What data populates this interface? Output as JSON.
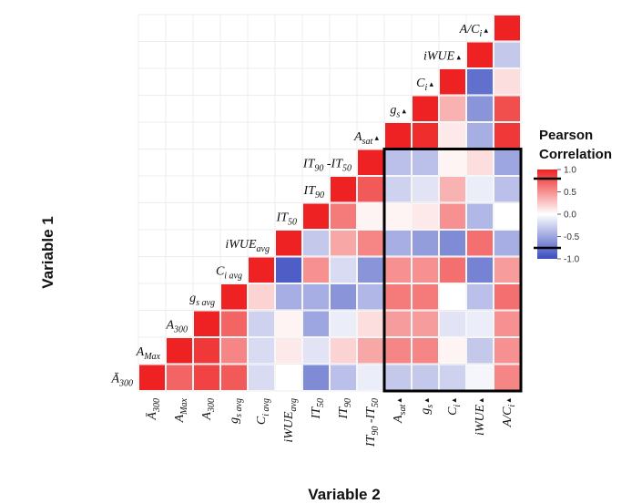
{
  "chart_data": {
    "type": "heatmap",
    "title": "",
    "xlabel": "Variable 2",
    "ylabel": "Variable 1",
    "variables": [
      "Ā300",
      "AMax",
      "A300",
      "gs avg",
      "Ci avg",
      "iWUEavg",
      "IT50",
      "IT90",
      "IT90 -IT50",
      "Asat ▴",
      "gs ▴",
      "Ci ▴",
      "iWUE ▴",
      "A/Ci ▴"
    ],
    "ticks": [
      {
        "base": "Ā",
        "sub": "300",
        "tri": ""
      },
      {
        "base": "A",
        "sub": "Max",
        "tri": ""
      },
      {
        "base": "A",
        "sub": "300",
        "tri": ""
      },
      {
        "base": "g",
        "sub": "s avg",
        "tri": ""
      },
      {
        "base": "C",
        "sub": "i avg",
        "tri": ""
      },
      {
        "base": "iWUE",
        "sub": "avg",
        "tri": ""
      },
      {
        "base": "IT",
        "sub": "50",
        "tri": ""
      },
      {
        "base": "IT",
        "sub": "90",
        "tri": ""
      },
      {
        "base": "IT",
        "sub": "90",
        "tail": " -IT",
        "sub2": "50",
        "tri": ""
      },
      {
        "base": "A",
        "sub": "sat",
        "tri": "▴"
      },
      {
        "base": "g",
        "sub": "s",
        "tri": "▴"
      },
      {
        "base": "C",
        "sub": "i",
        "tri": "▴"
      },
      {
        "base": "iWUE",
        "sub": "",
        "tri": "▴"
      },
      {
        "base": "A/C",
        "sub": "i",
        "tri": "▴"
      }
    ],
    "matrix": [
      [
        1.0
      ],
      [
        0.7,
        1.0
      ],
      [
        0.85,
        0.9,
        1.0
      ],
      [
        0.75,
        0.55,
        0.7,
        1.0
      ],
      [
        -0.2,
        -0.2,
        -0.25,
        0.2,
        1.0
      ],
      [
        0.0,
        0.1,
        0.05,
        -0.45,
        -0.9,
        1.0
      ],
      [
        -0.65,
        -0.15,
        -0.5,
        -0.45,
        0.5,
        -0.3,
        1.0
      ],
      [
        -0.35,
        0.2,
        -0.1,
        -0.6,
        -0.2,
        0.4,
        0.6,
        1.0
      ],
      [
        -0.1,
        0.4,
        0.15,
        -0.4,
        -0.6,
        0.55,
        0.05,
        0.75,
        1.0
      ],
      [
        -0.3,
        0.55,
        0.45,
        0.6,
        0.5,
        -0.45,
        0.05,
        -0.25,
        -0.35,
        1.0
      ],
      [
        -0.3,
        0.55,
        0.45,
        0.6,
        0.5,
        -0.55,
        0.1,
        -0.15,
        -0.35,
        0.95,
        1.0
      ],
      [
        -0.25,
        0.05,
        -0.15,
        0.0,
        0.65,
        -0.65,
        0.5,
        0.35,
        0.05,
        0.1,
        0.35,
        1.0
      ],
      [
        -0.05,
        -0.3,
        -0.1,
        -0.35,
        -0.7,
        0.65,
        -0.4,
        -0.1,
        0.15,
        -0.45,
        -0.6,
        -0.8,
        1.0
      ],
      [
        0.55,
        0.5,
        0.5,
        0.65,
        0.45,
        -0.45,
        0.0,
        -0.35,
        -0.5,
        0.9,
        0.8,
        0.15,
        -0.3,
        1.0
      ]
    ],
    "scale": {
      "min": -1.0,
      "max": 1.0,
      "low_color": "#3b4cc0",
      "mid_color": "#ffffff",
      "high_color": "#ee2222"
    },
    "legend": {
      "title_line1": "Pearson",
      "title_line2": "Correlation",
      "ticks": [
        "1.0",
        "0.5",
        "0.0",
        "-0.5",
        "-1.0"
      ],
      "placement": "right"
    },
    "highlight": {
      "rows": "IT90 -IT50 … Ā300",
      "cols": "Asat ▴ … A/Ci ▴"
    },
    "grid": true
  }
}
